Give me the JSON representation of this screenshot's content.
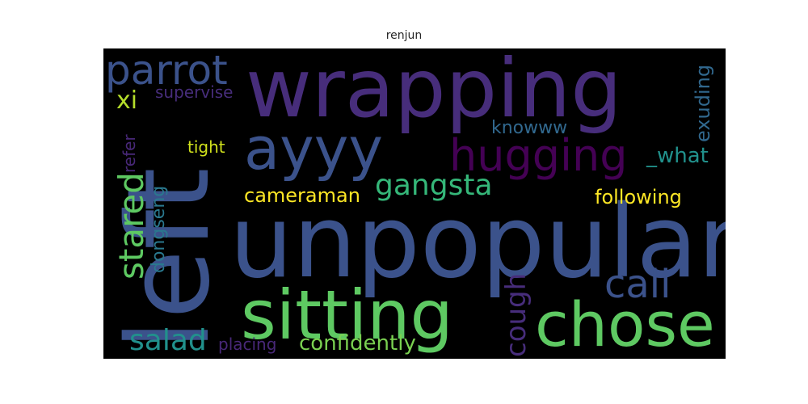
{
  "title": "renjun",
  "words": [
    {
      "text": "left",
      "color": "#3b528b"
    },
    {
      "text": "unpopular",
      "color": "#3b528b"
    },
    {
      "text": "wrapping",
      "color": "#472d7b"
    },
    {
      "text": "ayyy",
      "color": "#3b528b"
    },
    {
      "text": "sitting",
      "color": "#5ec962"
    },
    {
      "text": "chose",
      "color": "#5ec962"
    },
    {
      "text": "hugging",
      "color": "#440154"
    },
    {
      "text": "parrot",
      "color": "#3b528b"
    },
    {
      "text": "gangsta",
      "color": "#35b779"
    },
    {
      "text": "call",
      "color": "#3b528b"
    },
    {
      "text": "stared",
      "color": "#5ec962"
    },
    {
      "text": "following",
      "color": "#fde725"
    },
    {
      "text": "cameraman",
      "color": "#fde725"
    },
    {
      "text": "salad",
      "color": "#21918c"
    },
    {
      "text": "confidently",
      "color": "#7ad151"
    },
    {
      "text": "cough",
      "color": "#472d7b"
    },
    {
      "text": "exuding",
      "color": "#31688e"
    },
    {
      "text": "knowww",
      "color": "#31688e"
    },
    {
      "text": "xi",
      "color": "#b5de2b"
    },
    {
      "text": "supervise",
      "color": "#472d7b"
    },
    {
      "text": "tight",
      "color": "#d0e11c"
    },
    {
      "text": "refer",
      "color": "#482878"
    },
    {
      "text": "dongseng",
      "color": "#2a788e"
    },
    {
      "text": "_what",
      "color": "#21918c"
    },
    {
      "text": "placing",
      "color": "#482878"
    }
  ]
}
